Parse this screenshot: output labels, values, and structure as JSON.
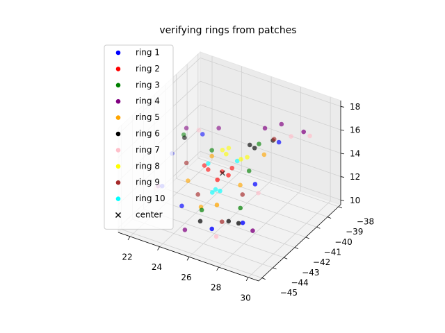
{
  "chart_data": {
    "type": "scatter3d",
    "title": "verifying rings from patches",
    "xlim": [
      21.2,
      30.7
    ],
    "ylim": [
      -45.3,
      -37.8
    ],
    "zlim": [
      9.6,
      18.5
    ],
    "xticks": [
      22,
      24,
      26,
      28,
      30
    ],
    "yticks": [
      {
        "value": -45,
        "label": "−45"
      },
      {
        "value": -44,
        "label": "−44"
      },
      {
        "value": -43,
        "label": "−43"
      },
      {
        "value": -42,
        "label": "−42"
      },
      {
        "value": -41,
        "label": "−41"
      },
      {
        "value": -40,
        "label": "−40"
      },
      {
        "value": -39,
        "label": "−39"
      },
      {
        "value": -38,
        "label": "−38"
      }
    ],
    "zticks": [
      10,
      12,
      14,
      16,
      18
    ],
    "grid": true,
    "legend": "upper left",
    "series": [
      {
        "name": "ring 1",
        "color": "#0000ff",
        "marker": "o",
        "x": [
          23.8,
          26.5,
          27.7,
          27.5,
          28.0,
          23.5,
          22.4,
          22.4
        ],
        "y": [
          -43.0,
          -43.9,
          -42.7,
          -41.3,
          -39.8,
          -40.7,
          -42.0,
          -42.9
        ],
        "z": [
          11,
          11,
          11,
          13,
          15.5,
          15,
          14,
          12
        ]
      },
      {
        "name": "ring 2",
        "color": "#ff0000",
        "marker": "o",
        "x": [
          24.1,
          24.9,
          25.2,
          25.1,
          23.7,
          25.4
        ],
        "y": [
          -41.0,
          -40.8,
          -40.3,
          -41.5,
          -40.8,
          -40.9
        ],
        "z": [
          12.5,
          12.5,
          12.5,
          12.5,
          12.5,
          12.5
        ]
      },
      {
        "name": "ring 3",
        "color": "#008000",
        "marker": "o",
        "x": [
          26.8,
          25.0,
          24.5,
          26.8,
          22.6,
          26.5
        ],
        "y": [
          -41.7,
          -42.8,
          -41.2,
          -40.0,
          -41.2,
          -40.5
        ],
        "z": [
          11,
          11,
          14.5,
          15,
          15,
          13
        ]
      },
      {
        "name": "ring 4",
        "color": "#800080",
        "marker": "o",
        "x": [
          28.1,
          29.6,
          27.5,
          24.6,
          23.0,
          24.6,
          28.3,
          22.2
        ],
        "y": [
          -39.7,
          -39.7,
          -40.4,
          -40.7,
          -41.5,
          -43.8,
          -42.6,
          -43.0
        ],
        "z": [
          17,
          17,
          17,
          16,
          16,
          10,
          10.5,
          12
        ]
      },
      {
        "name": "ring 5",
        "color": "#ffa500",
        "marker": "o",
        "x": [
          26.2,
          26.1,
          24.8,
          23.7,
          24.5,
          27.0
        ],
        "y": [
          -40.9,
          -42.9,
          -42.6,
          -42.3,
          -41.2,
          -39.8
        ],
        "z": [
          12,
          12,
          11,
          12.5,
          14,
          14
        ]
      },
      {
        "name": "ring 6",
        "color": "#000000",
        "marker": "o",
        "x": [
          24.9,
          26.3,
          26.9,
          26.8,
          27.3,
          26.4,
          22.8
        ],
        "y": [
          -42.8,
          -42.1,
          -42.0,
          -40.4,
          -39.4,
          -40.3,
          -41.4
        ],
        "z": [
          10,
          10,
          10,
          15,
          15,
          15,
          15
        ]
      },
      {
        "name": "ring 7",
        "color": "#ffc0cb",
        "marker": "o",
        "x": [
          23.1,
          28.6,
          29.5,
          21.9,
          26.5,
          27.2
        ],
        "y": [
          -40.5,
          -39.5,
          -39.0,
          -42.8,
          -43.5,
          -40.6
        ],
        "z": [
          15,
          16,
          16,
          11.5,
          10,
          11.5
        ]
      },
      {
        "name": "ring 8",
        "color": "#ffff00",
        "marker": "o",
        "x": [
          25.1,
          24.9,
          26.1,
          26.3,
          24.7
        ],
        "y": [
          -40.7,
          -40.2,
          -40.7,
          -40.4,
          -40.5
        ],
        "z": [
          14,
          14,
          14,
          14,
          14
        ]
      },
      {
        "name": "ring 9",
        "color": "#a52a2a",
        "marker": "o",
        "x": [
          23.3,
          24.3,
          26.0,
          26.5,
          27.6
        ],
        "y": [
          -41.9,
          -42.2,
          -42.3,
          -41.1,
          -39.7
        ],
        "z": [
          13.5,
          11.5,
          10,
          11.5,
          15.5
        ]
      },
      {
        "name": "ring 10",
        "color": "#00ffff",
        "marker": "o",
        "x": [
          24.9,
          25.2,
          24.9,
          24.4,
          25.7
        ],
        "y": [
          -41.4,
          -41.4,
          -41.7,
          -41.4,
          -40.5
        ],
        "z": [
          11.5,
          11.5,
          11.5,
          13.5,
          13.5
        ]
      },
      {
        "name": "center",
        "color": "#000000",
        "marker": "x",
        "x": [
          25.0
        ],
        "y": [
          -40.9
        ],
        "z": [
          12.5
        ]
      }
    ]
  }
}
